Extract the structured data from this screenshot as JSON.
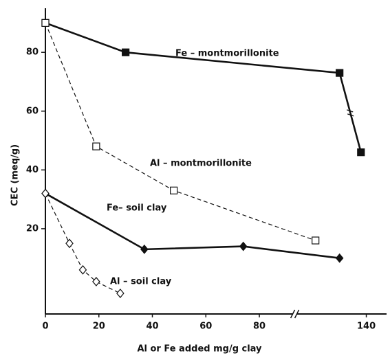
{
  "chart_data": {
    "type": "line",
    "xlabel": "Al or Fe added mg/g clay",
    "ylabel": "CEC (meq/g)",
    "xlim": [
      0,
      145
    ],
    "xbreak": [
      93,
      113
    ],
    "ylim": [
      -9,
      95
    ],
    "xticks": [
      0,
      20,
      40,
      60,
      80,
      140
    ],
    "yticks": [
      20,
      40,
      60,
      80
    ],
    "series": [
      {
        "name": "Fe – montmorillonite",
        "color": "#111111",
        "marker": "square",
        "filled": true,
        "dashed": false,
        "x": [
          0,
          30,
          130,
          138
        ],
        "values": [
          90,
          80,
          73,
          46
        ]
      },
      {
        "name": "Al – montmorillonite",
        "color": "#111111",
        "marker": "square",
        "filled": false,
        "dashed": true,
        "x": [
          0,
          19,
          48,
          121
        ],
        "values": [
          90,
          48,
          33,
          16
        ]
      },
      {
        "name": "Fe– soil clay",
        "color": "#111111",
        "marker": "diamond",
        "filled": true,
        "dashed": false,
        "x": [
          0,
          37,
          74,
          130
        ],
        "values": [
          32,
          13,
          14,
          10
        ]
      },
      {
        "name": "Al – soil clay",
        "color": "#111111",
        "marker": "diamond",
        "filled": false,
        "dashed": true,
        "x": [
          0,
          9,
          14,
          19,
          28
        ],
        "values": [
          32,
          15,
          6,
          2,
          -2
        ]
      }
    ]
  }
}
